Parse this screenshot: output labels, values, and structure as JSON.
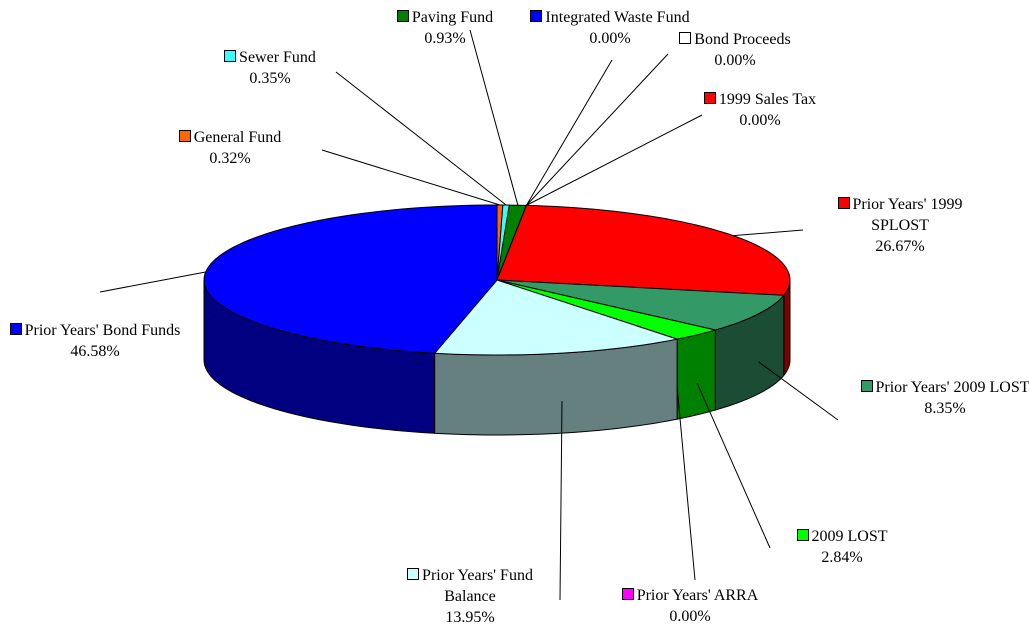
{
  "chart_data": {
    "type": "pie3d",
    "categories": [
      "General Fund",
      "Sewer Fund",
      "Paving Fund",
      "Integrated Waste Fund",
      "Bond Proceeds",
      "1999 Sales Tax",
      "Prior Years' 1999 SPLOST",
      "Prior Years' 2009 LOST",
      "2009 LOST",
      "Prior Years' ARRA",
      "Prior Years' Fund Balance",
      "Prior Years' Bond Funds"
    ],
    "values": [
      0.32,
      0.35,
      0.93,
      0,
      0,
      0,
      26.67,
      8.35,
      2.84,
      0,
      13.95,
      46.58
    ],
    "value_labels": [
      "0.32%",
      "0.35%",
      "0.93%",
      "0.00%",
      "0.00%",
      "0.00%",
      "26.67%",
      "8.35%",
      "2.84%",
      "0.00%",
      "13.95%",
      "46.58%"
    ],
    "colors": [
      "#ff6600",
      "#33ffff",
      "#008000",
      "#0000ff",
      "#ffffff",
      "#ff0000",
      "#ff0000",
      "#339966",
      "#00ff00",
      "#ff00ff",
      "#ccffff",
      "#0000ff"
    ]
  }
}
